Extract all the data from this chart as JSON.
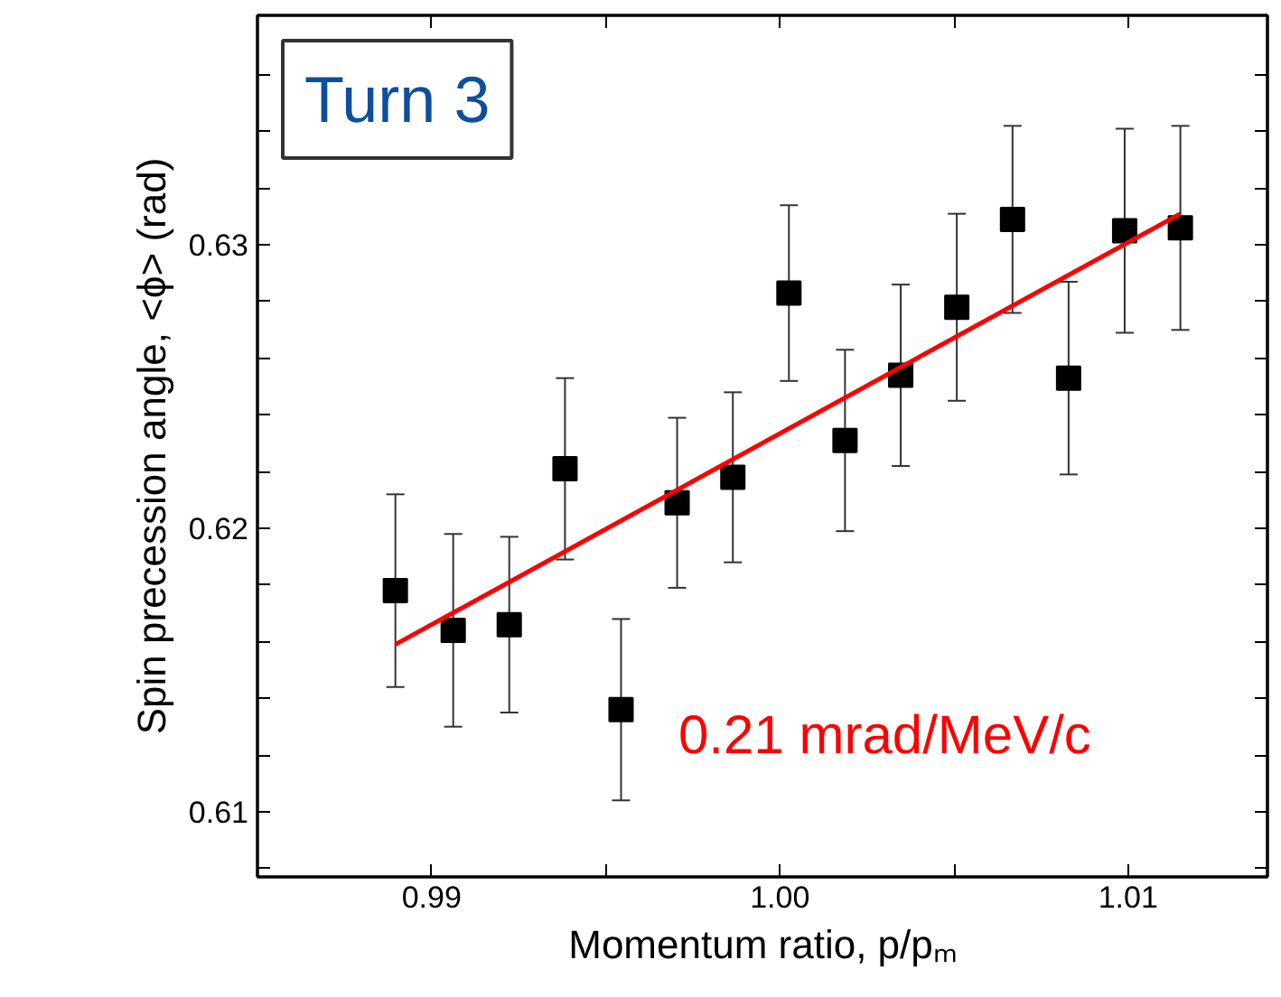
{
  "chart_data": {
    "type": "scatter",
    "xlabel": "Momentum ratio, p/pₘ",
    "ylabel": "Spin precession angle, <ϕ> (rad)",
    "annotations": [
      "Turn 3",
      "0.21 mrad/MeV/c"
    ],
    "series": [
      {
        "color": "#000000",
        "marker": "square",
        "x": [
          0.98896,
          0.99062,
          0.99223,
          0.99383,
          0.99544,
          0.99705,
          0.99865,
          1.00026,
          1.00187,
          1.00347,
          1.00508,
          1.00668,
          1.00829,
          1.0099,
          1.0115
        ],
        "values": [
          0.6178,
          0.6164,
          0.6166,
          0.6221,
          0.6136,
          0.6209,
          0.6218,
          0.6283,
          0.6231,
          0.6254,
          0.6278,
          0.6309,
          0.6253,
          0.6305,
          0.6306
        ],
        "errors": [
          0.0034,
          0.0034,
          0.0031,
          0.0032,
          0.0032,
          0.003,
          0.003,
          0.0031,
          0.0032,
          0.0032,
          0.0033,
          0.0033,
          0.0034,
          0.0036,
          0.0036
        ]
      },
      {
        "type": "line",
        "color": "#ff0000",
        "x": [
          0.98896,
          1.0115
        ],
        "values": [
          0.6159,
          0.6311
        ]
      }
    ],
    "xlim": [
      0.985,
      1.014
    ],
    "ylim": [
      0.6077,
      0.6381
    ],
    "xticks": [
      0.99,
      {
        "value": 0.995,
        "label": null
      },
      {
        "value": 1.0,
        "label": "1.00"
      },
      {
        "value": 1.005,
        "label": null
      },
      1.01
    ],
    "yticks": [
      {
        "value": 0.608,
        "label": null
      },
      0.61,
      {
        "value": 0.612,
        "label": null
      },
      {
        "value": 0.614,
        "label": null
      },
      {
        "value": 0.616,
        "label": null
      },
      {
        "value": 0.618,
        "label": null
      },
      0.62,
      {
        "value": 0.622,
        "label": null
      },
      {
        "value": 0.624,
        "label": null
      },
      {
        "value": 0.626,
        "label": null
      },
      {
        "value": 0.628,
        "label": null
      },
      0.63,
      {
        "value": 0.632,
        "label": null
      },
      {
        "value": 0.634,
        "label": null
      },
      {
        "value": 0.636,
        "label": null
      }
    ],
    "grid": false
  }
}
